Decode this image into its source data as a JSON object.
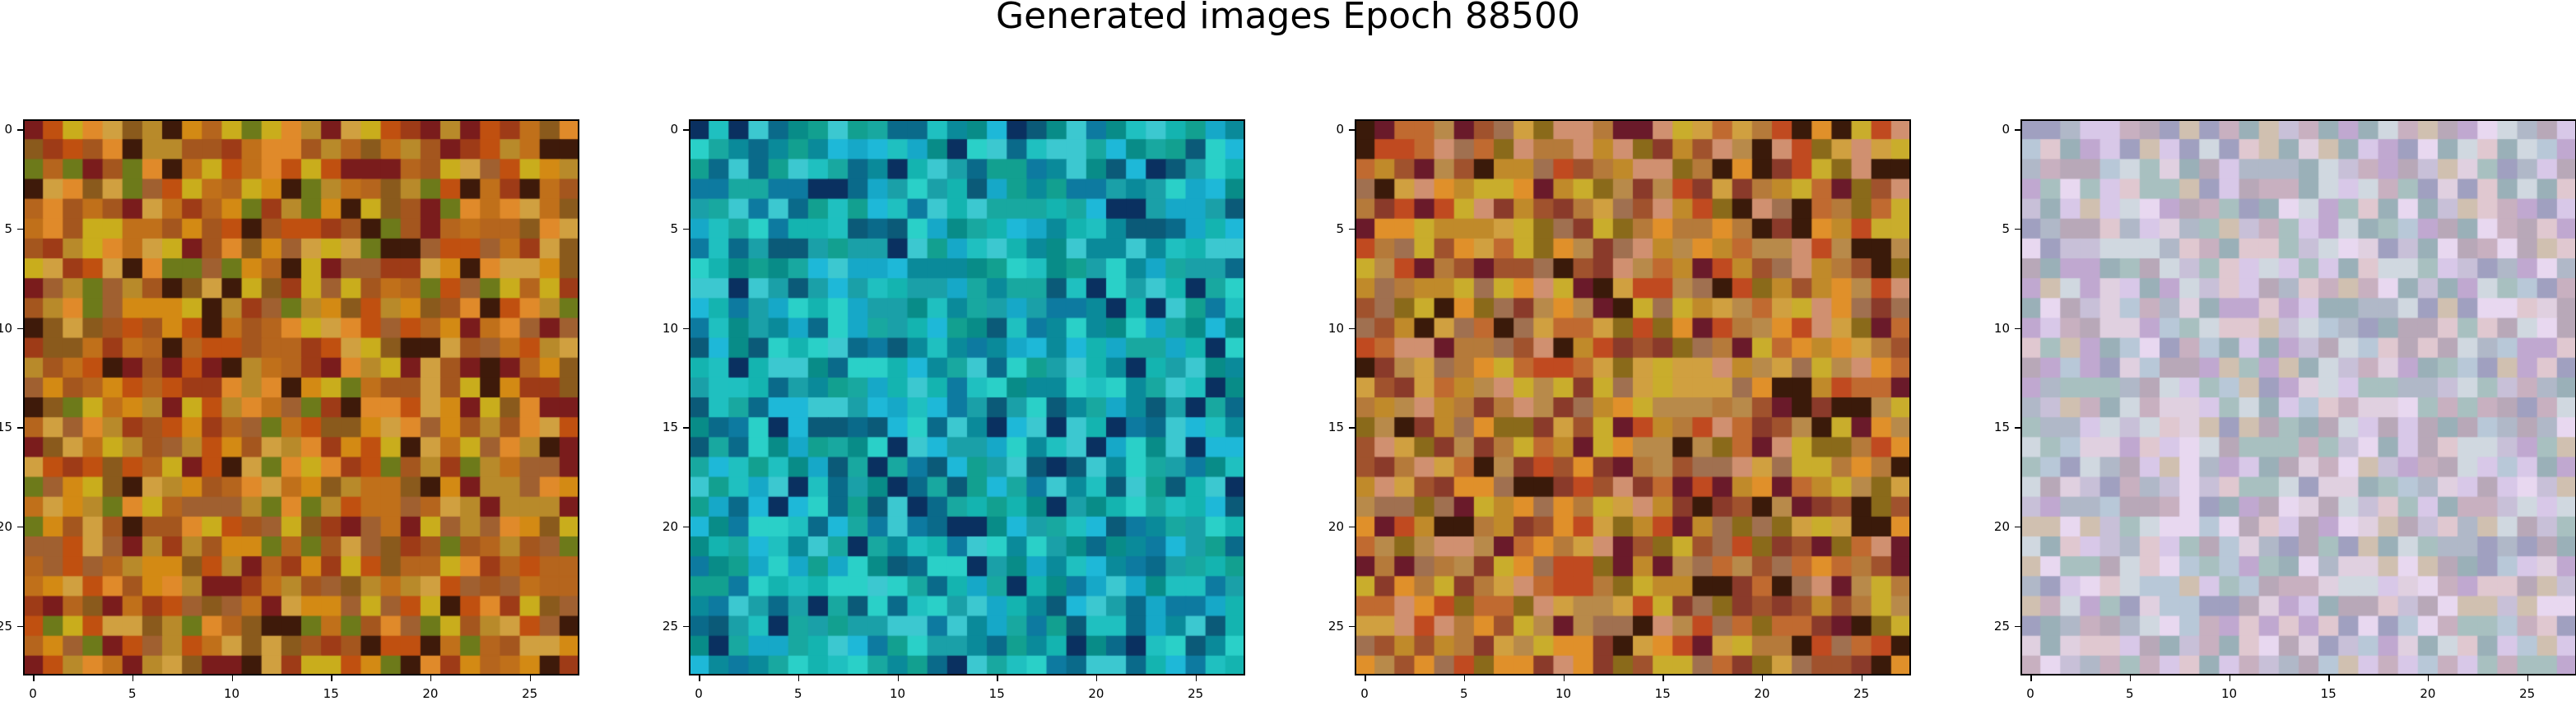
{
  "figure": {
    "title": "Generated images Epoch 88500"
  },
  "chart_data": [
    {
      "type": "heatmap",
      "grid": [
        28,
        28
      ],
      "xlim": [
        -0.5,
        27.5
      ],
      "ylim": [
        27.5,
        -0.5
      ],
      "xticks": [
        0,
        5,
        10,
        15,
        20,
        25
      ],
      "yticks": [
        0,
        5,
        10,
        15,
        20,
        25
      ],
      "palette": [
        "#b5651d",
        "#c0701a",
        "#a4561e",
        "#d38a14",
        "#8a5a1c",
        "#b88a2a",
        "#9e3b17",
        "#c9ad1c",
        "#6d7a1a",
        "#7a1c1c",
        "#e08a2a",
        "#3e1a0a",
        "#d0a040",
        "#a06030",
        "#c05010"
      ]
    },
    {
      "type": "heatmap",
      "grid": [
        28,
        28
      ],
      "xlim": [
        -0.5,
        27.5
      ],
      "ylim": [
        27.5,
        -0.5
      ],
      "xticks": [
        0,
        5,
        10,
        15,
        20,
        25
      ],
      "yticks": [
        0,
        5,
        10,
        15,
        20,
        25
      ],
      "palette": [
        "#1aa0a8",
        "#14b4b0",
        "#0a8a9a",
        "#1fc0c0",
        "#0d7aa0",
        "#16a8c8",
        "#088c88",
        "#2ad0c8",
        "#0a6a8a",
        "#1eb8d8",
        "#0a3060",
        "#12a090",
        "#3cc8d0",
        "#0b5a78",
        "#18a8a0"
      ]
    },
    {
      "type": "heatmap",
      "grid": [
        28,
        28
      ],
      "xlim": [
        -0.5,
        27.5
      ],
      "ylim": [
        27.5,
        -0.5
      ],
      "xticks": [
        0,
        5,
        10,
        15,
        20,
        25
      ],
      "yticks": [
        0,
        5,
        10,
        15,
        20,
        25
      ],
      "palette": [
        "#b57a3a",
        "#c08a2a",
        "#a0522d",
        "#d0a040",
        "#8a3a2a",
        "#b88a4a",
        "#c04a20",
        "#c9ad2c",
        "#6a1a2a",
        "#d09070",
        "#e0902a",
        "#3a1a0a",
        "#a07050",
        "#8a6a1a",
        "#c06a30"
      ]
    },
    {
      "type": "heatmap",
      "grid": [
        28,
        28
      ],
      "xlim": [
        -0.5,
        27.5
      ],
      "ylim": [
        27.5,
        -0.5
      ],
      "xticks": [
        0,
        5,
        10,
        15,
        20,
        25
      ],
      "yticks": [
        0,
        5,
        10,
        15,
        20,
        25
      ],
      "palette": [
        "#c8c0d8",
        "#d8c8e8",
        "#b0b8c8",
        "#e0d0e0",
        "#a8c0c0",
        "#c0a8d0",
        "#d0d8e0",
        "#b8a8b8",
        "#e8d8f0",
        "#9ab0b8",
        "#c8b0c0",
        "#d0c0b0",
        "#a0a0c0",
        "#e0c8d0",
        "#b8c8d8"
      ]
    }
  ]
}
